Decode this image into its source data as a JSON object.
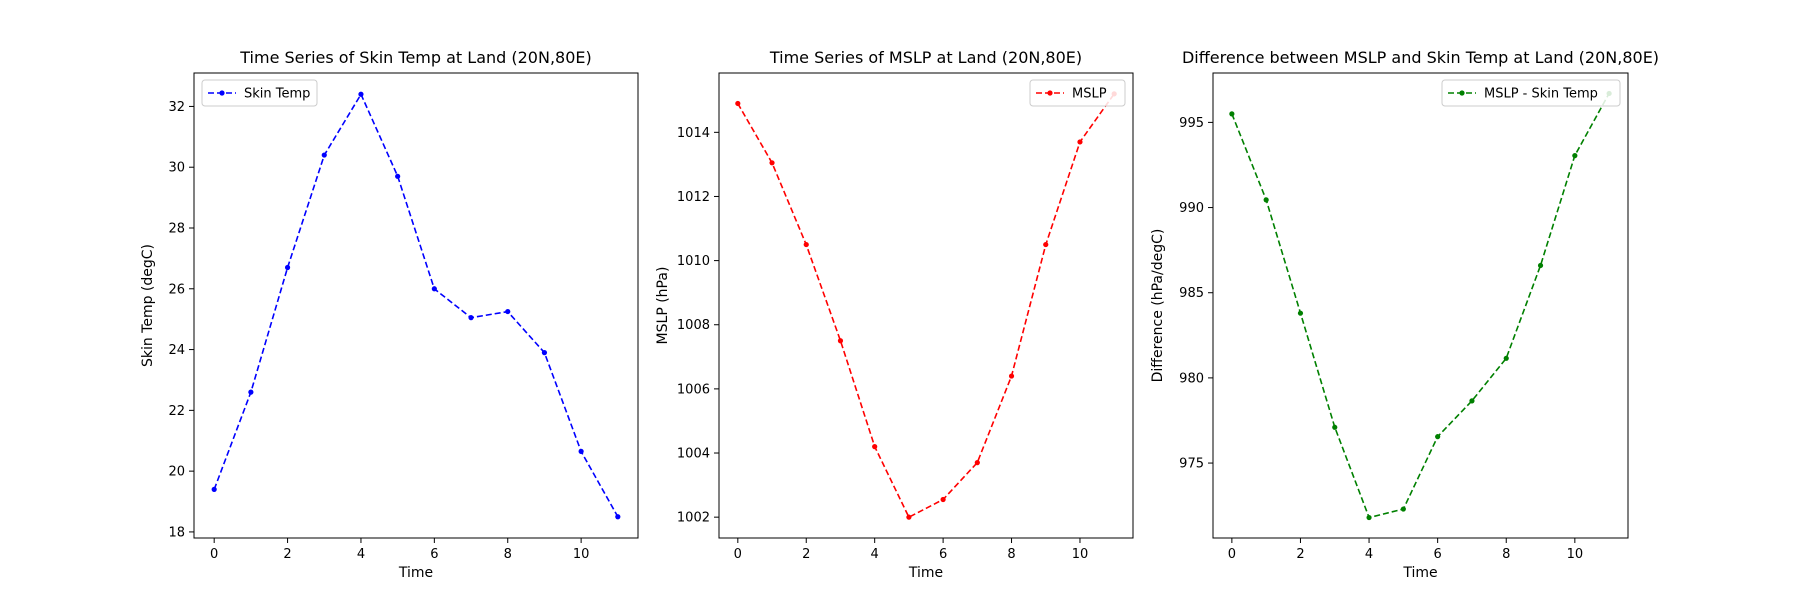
{
  "chart_data": [
    {
      "type": "line",
      "title": "Time Series of Skin Temp at Land (20N,80E)",
      "xlabel": "Time",
      "ylabel": "Skin Temp (degC)",
      "x": [
        0,
        1,
        2,
        3,
        4,
        5,
        6,
        7,
        8,
        9,
        10,
        11
      ],
      "series": [
        {
          "name": "Skin Temp",
          "color": "#0000ff",
          "line_style": "dashed",
          "marker": "dot",
          "values": [
            19.4,
            22.6,
            26.7,
            30.4,
            32.4,
            29.7,
            26.0,
            25.05,
            25.25,
            23.9,
            20.65,
            18.5
          ]
        }
      ],
      "xlim": [
        -0.55,
        11.55
      ],
      "ylim": [
        17.8,
        33.1
      ],
      "xticks": [
        "0",
        "2",
        "4",
        "6",
        "8",
        "10"
      ],
      "yticks": [
        "18",
        "20",
        "22",
        "24",
        "26",
        "28",
        "30",
        "32"
      ],
      "legend_position": "upper-left",
      "grid": false
    },
    {
      "type": "line",
      "title": "Time Series of MSLP at Land (20N,80E)",
      "xlabel": "Time",
      "ylabel": "MSLP (hPa)",
      "x": [
        0,
        1,
        2,
        3,
        4,
        5,
        6,
        7,
        8,
        9,
        10,
        11
      ],
      "series": [
        {
          "name": "MSLP",
          "color": "#ff0000",
          "line_style": "dashed",
          "marker": "dot",
          "values": [
            1014.9,
            1013.05,
            1010.5,
            1007.5,
            1004.2,
            1002.0,
            1002.55,
            1003.7,
            1006.4,
            1010.5,
            1013.7,
            1015.2
          ]
        }
      ],
      "xlim": [
        -0.55,
        11.55
      ],
      "ylim": [
        1001.35,
        1015.85
      ],
      "xticks": [
        "0",
        "2",
        "4",
        "6",
        "8",
        "10"
      ],
      "yticks": [
        "1002",
        "1004",
        "1006",
        "1008",
        "1010",
        "1012",
        "1014"
      ],
      "legend_position": "upper-right",
      "grid": false
    },
    {
      "type": "line",
      "title": "Difference between MSLP and Skin Temp at Land (20N,80E)",
      "xlabel": "Time",
      "ylabel": "Difference (hPa/degC)",
      "x": [
        0,
        1,
        2,
        3,
        4,
        5,
        6,
        7,
        8,
        9,
        10,
        11
      ],
      "series": [
        {
          "name": "MSLP - Skin Temp",
          "color": "#008000",
          "line_style": "dashed",
          "marker": "dot",
          "values": [
            995.5,
            990.45,
            983.8,
            977.1,
            971.8,
            972.3,
            976.55,
            978.65,
            981.15,
            986.6,
            993.05,
            996.7
          ]
        }
      ],
      "xlim": [
        -0.55,
        11.55
      ],
      "ylim": [
        970.6,
        997.9
      ],
      "xticks": [
        "0",
        "2",
        "4",
        "6",
        "8",
        "10"
      ],
      "yticks": [
        "975",
        "980",
        "985",
        "990",
        "995"
      ],
      "legend_position": "upper-right",
      "grid": false
    }
  ]
}
